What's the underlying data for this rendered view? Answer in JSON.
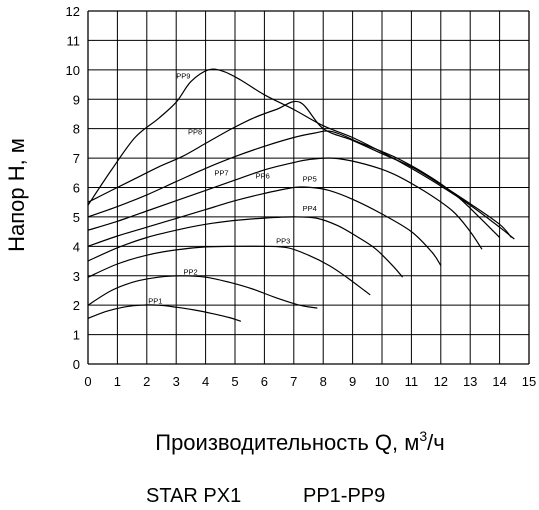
{
  "chart_data": {
    "type": "line",
    "title": "",
    "xlabel": "Производительность Q, м",
    "xlabel_sup": "3",
    "xlabel_tail": "/ч",
    "ylabel": "Напор Н, м",
    "xlim": [
      0,
      15
    ],
    "ylim": [
      0,
      12
    ],
    "x_ticks": [
      "0",
      "1",
      "2",
      "3",
      "4",
      "5",
      "6",
      "7",
      "8",
      "9",
      "10",
      "11",
      "12",
      "13",
      "14",
      "15"
    ],
    "y_ticks": [
      "0",
      "1",
      "2",
      "3",
      "4",
      "5",
      "6",
      "7",
      "8",
      "9",
      "10",
      "11",
      "12"
    ],
    "grid": true,
    "series": [
      {
        "name": "PP1",
        "label_at": [
          2.05,
          2.05
        ],
        "points": [
          [
            0,
            1.55
          ],
          [
            0.6,
            1.78
          ],
          [
            1.2,
            1.93
          ],
          [
            1.8,
            2.0
          ],
          [
            2.4,
            2.0
          ],
          [
            3.0,
            1.93
          ],
          [
            3.6,
            1.84
          ],
          [
            4.2,
            1.72
          ],
          [
            4.8,
            1.58
          ],
          [
            5.2,
            1.45
          ]
        ]
      },
      {
        "name": "PP2",
        "label_at": [
          3.25,
          3.05
        ],
        "points": [
          [
            0,
            2.0
          ],
          [
            0.8,
            2.5
          ],
          [
            1.6,
            2.8
          ],
          [
            2.4,
            2.95
          ],
          [
            3.2,
            3.0
          ],
          [
            4.0,
            2.95
          ],
          [
            4.8,
            2.78
          ],
          [
            5.6,
            2.55
          ],
          [
            6.4,
            2.25
          ],
          [
            7.2,
            2.0
          ],
          [
            7.8,
            1.9
          ]
        ]
      },
      {
        "name": "PP3",
        "label_at": [
          6.4,
          4.1
        ],
        "points": [
          [
            0,
            2.95
          ],
          [
            1.0,
            3.4
          ],
          [
            2.0,
            3.7
          ],
          [
            3.0,
            3.88
          ],
          [
            4.0,
            3.98
          ],
          [
            5.0,
            4.0
          ],
          [
            6.0,
            4.0
          ],
          [
            6.8,
            3.95
          ],
          [
            7.5,
            3.7
          ],
          [
            8.2,
            3.35
          ],
          [
            8.8,
            2.95
          ],
          [
            9.4,
            2.5
          ],
          [
            9.6,
            2.35
          ]
        ]
      },
      {
        "name": "PP4",
        "label_at": [
          7.3,
          5.2
        ],
        "points": [
          [
            0,
            3.5
          ],
          [
            1.0,
            3.95
          ],
          [
            2.0,
            4.3
          ],
          [
            3.0,
            4.55
          ],
          [
            4.0,
            4.75
          ],
          [
            5.0,
            4.88
          ],
          [
            6.0,
            4.96
          ],
          [
            7.0,
            5.0
          ],
          [
            7.8,
            4.95
          ],
          [
            8.5,
            4.7
          ],
          [
            9.2,
            4.3
          ],
          [
            9.8,
            3.9
          ],
          [
            10.4,
            3.3
          ],
          [
            10.7,
            2.95
          ]
        ]
      },
      {
        "name": "PP5",
        "label_at": [
          7.3,
          6.2
        ],
        "points": [
          [
            0,
            4.0
          ],
          [
            1.0,
            4.35
          ],
          [
            2.0,
            4.65
          ],
          [
            3.0,
            4.95
          ],
          [
            4.0,
            5.25
          ],
          [
            5.0,
            5.55
          ],
          [
            6.0,
            5.8
          ],
          [
            7.0,
            6.0
          ],
          [
            7.6,
            6.0
          ],
          [
            8.2,
            5.9
          ],
          [
            9.0,
            5.6
          ],
          [
            10.0,
            5.1
          ],
          [
            11.0,
            4.5
          ],
          [
            11.7,
            3.8
          ],
          [
            12.0,
            3.35
          ]
        ]
      },
      {
        "name": "PP6",
        "label_at": [
          5.7,
          6.3
        ],
        "points": [
          [
            0,
            4.55
          ],
          [
            1.0,
            4.85
          ],
          [
            2.0,
            5.2
          ],
          [
            3.0,
            5.55
          ],
          [
            4.0,
            5.9
          ],
          [
            5.0,
            6.25
          ],
          [
            6.0,
            6.6
          ],
          [
            7.0,
            6.85
          ],
          [
            7.5,
            6.95
          ],
          [
            8.3,
            7.0
          ],
          [
            9.2,
            6.85
          ],
          [
            10.3,
            6.5
          ],
          [
            11.4,
            5.9
          ],
          [
            12.4,
            5.2
          ],
          [
            13.0,
            4.5
          ],
          [
            13.4,
            3.9
          ]
        ]
      },
      {
        "name": "PP7",
        "label_at": [
          4.3,
          6.4
        ],
        "points": [
          [
            0,
            5.0
          ],
          [
            1.0,
            5.35
          ],
          [
            2.0,
            5.75
          ],
          [
            3.0,
            6.2
          ],
          [
            4.0,
            6.65
          ],
          [
            5.0,
            7.05
          ],
          [
            6.0,
            7.4
          ],
          [
            7.0,
            7.7
          ],
          [
            7.7,
            7.85
          ],
          [
            8.3,
            7.9
          ],
          [
            9.3,
            7.5
          ],
          [
            10.4,
            7.05
          ],
          [
            11.5,
            6.45
          ],
          [
            12.5,
            5.75
          ],
          [
            13.3,
            5.0
          ],
          [
            14.0,
            4.3
          ]
        ]
      },
      {
        "name": "PP8",
        "label_at": [
          3.4,
          7.8
        ],
        "points": [
          [
            0,
            5.5
          ],
          [
            0.8,
            5.9
          ],
          [
            1.6,
            6.3
          ],
          [
            2.4,
            6.7
          ],
          [
            3.2,
            7.05
          ],
          [
            4.0,
            7.5
          ],
          [
            4.8,
            7.95
          ],
          [
            5.6,
            8.35
          ],
          [
            6.4,
            8.65
          ],
          [
            7.2,
            8.9
          ],
          [
            8.0,
            8.0
          ],
          [
            9.0,
            7.6
          ],
          [
            10.0,
            7.15
          ],
          [
            11.0,
            6.7
          ],
          [
            12.0,
            6.1
          ],
          [
            13.0,
            5.45
          ],
          [
            14.0,
            4.75
          ],
          [
            14.4,
            4.3
          ]
        ]
      },
      {
        "name": "PP9",
        "label_at": [
          3.0,
          9.7
        ],
        "points": [
          [
            0,
            5.4
          ],
          [
            0.8,
            6.6
          ],
          [
            1.6,
            7.7
          ],
          [
            2.4,
            8.35
          ],
          [
            3.0,
            8.9
          ],
          [
            3.5,
            9.6
          ],
          [
            4.1,
            10.0
          ],
          [
            4.6,
            9.95
          ],
          [
            5.2,
            9.65
          ],
          [
            6.0,
            9.15
          ],
          [
            7.0,
            8.65
          ],
          [
            8.0,
            8.1
          ],
          [
            9.0,
            7.7
          ],
          [
            10.0,
            7.2
          ],
          [
            11.0,
            6.65
          ],
          [
            12.0,
            6.05
          ],
          [
            13.0,
            5.4
          ],
          [
            14.0,
            4.65
          ],
          [
            14.5,
            4.25
          ]
        ]
      }
    ]
  },
  "footer": {
    "model": "STAR PX1",
    "range": "PP1-PP9"
  }
}
